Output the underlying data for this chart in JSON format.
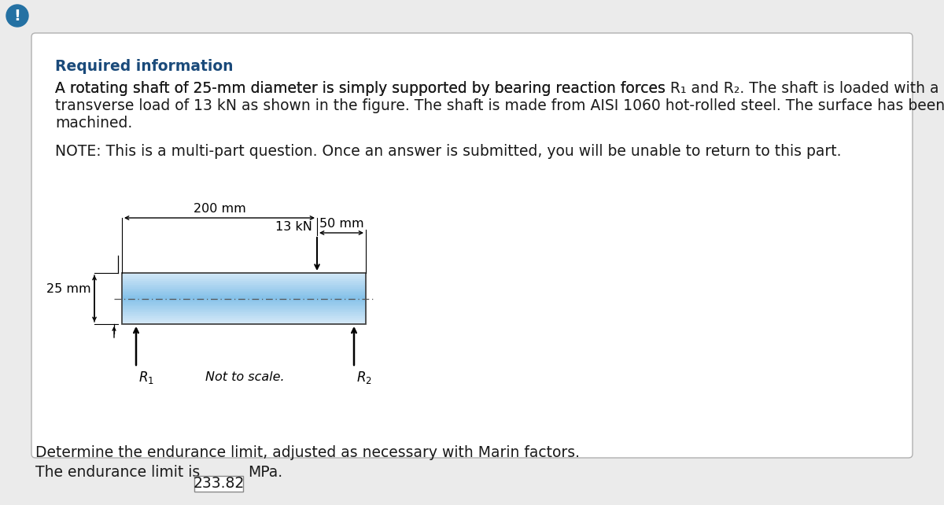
{
  "page_bg": "#ebebeb",
  "card_bg": "#ffffff",
  "card_border": "#b0b0b0",
  "title_text": "Required information",
  "title_color": "#1a4a7a",
  "body_line1": "A rotating shaft of 25-mm diameter is simply supported by bearing reaction forces ",
  "body_r1": "R",
  "body_r1_sub": "1",
  "body_mid": " and ",
  "body_r2": "R",
  "body_r2_sub": "2",
  "body_line1_end": ". The shaft is loaded with a",
  "body_line2": "transverse load of 13 kN as shown in the figure. The shaft is made from AISI 1060 hot-rolled steel. The surface has been",
  "body_line3": "machined.",
  "note_text": "NOTE: This is a multi-part question. Once an answer is submitted, you will be unable to return to this part.",
  "dim_25mm": "25 mm",
  "dim_200mm": "200 mm",
  "dim_50mm": "50 mm",
  "load_label": "13 kN",
  "r1_label": "R",
  "r1_sub": "1",
  "r2_label": "R",
  "r2_sub": "2",
  "not_to_scale": "Not to scale.",
  "bottom_text_1": "Determine the endurance limit, adjusted as necessary with Marin factors.",
  "bottom_text_2": "The endurance limit is",
  "answer_value": "233.82",
  "answer_unit": "MPa.",
  "warning_bg": "#2471a3",
  "text_color": "#1a1a1a",
  "font_size_body": 13.5,
  "font_size_title": 13.5,
  "font_size_diagram": 11.5
}
